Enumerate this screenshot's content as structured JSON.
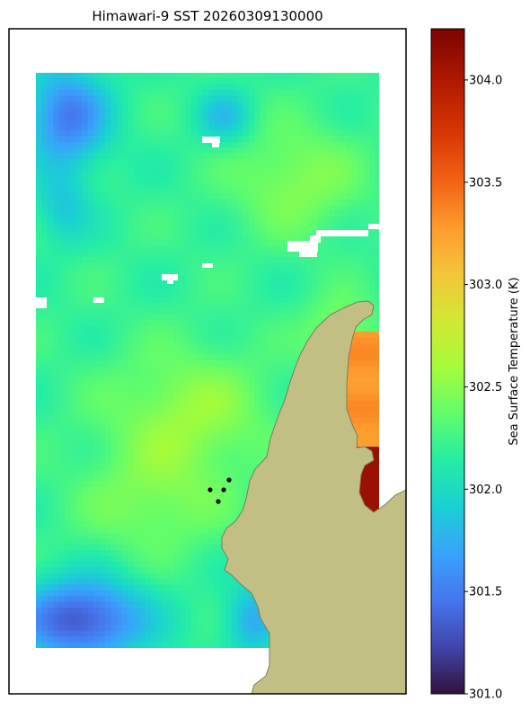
{
  "chart_data": {
    "type": "heatmap",
    "title": "Himawari-9 SST 20260309130000",
    "colorbar": {
      "label": "Sea Surface Temperature (K)",
      "range": [
        301.0,
        304.25
      ],
      "ticks": [
        "301.0",
        "301.5",
        "302.0",
        "302.5",
        "303.0",
        "303.5",
        "304.0"
      ],
      "colormap": "turbo"
    },
    "field": {
      "nominal_value_K": 302.2,
      "warm_patch_K": 303.3,
      "hot_patch_K": 304.1,
      "cool_corner_K": 301.1
    },
    "land_color": "#c2bf85",
    "markers": 4
  }
}
